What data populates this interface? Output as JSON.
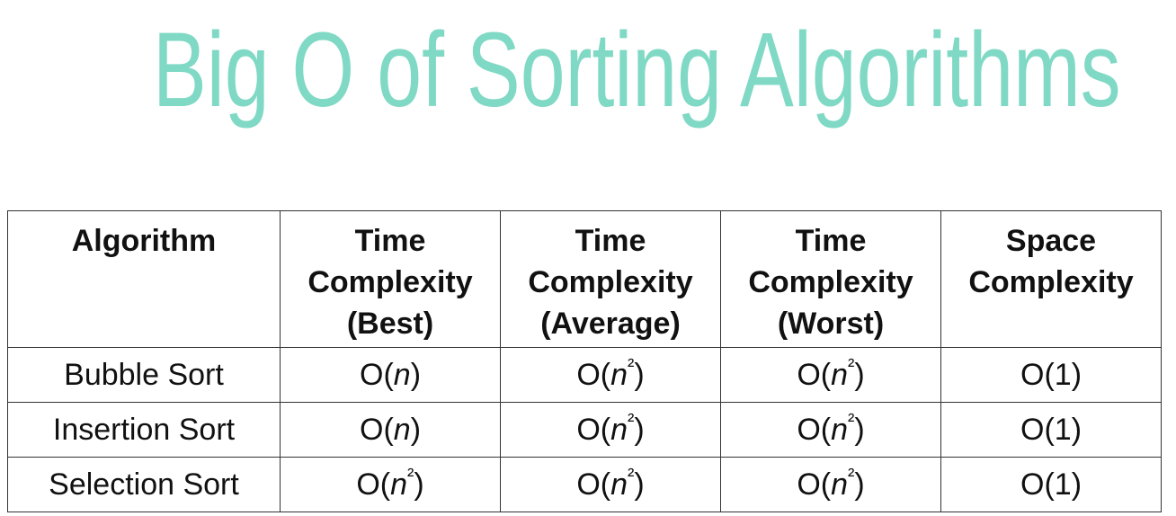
{
  "header": {
    "title": "Big O of Sorting Algorithms"
  },
  "table": {
    "columns": [
      "Algorithm",
      "Time Complexity (Best)",
      "Time Complexity (Average)",
      "Time Complexity (Worst)",
      "Space Complexity"
    ],
    "rows": [
      [
        "Bubble Sort",
        "O(n)",
        "O(n²)",
        "O(n²)",
        "O(1)"
      ],
      [
        "Insertion Sort",
        "O(n)",
        "O(n²)",
        "O(n²)",
        "O(1)"
      ],
      [
        "Selection Sort",
        "O(n²)",
        "O(n²)",
        "O(n²)",
        "O(1)"
      ]
    ]
  }
}
